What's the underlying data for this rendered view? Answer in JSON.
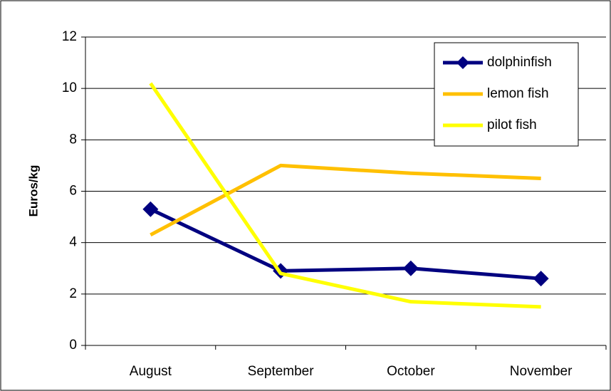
{
  "chart_data": {
    "type": "line",
    "y_label": "Euros/kg",
    "categories": [
      "August",
      "September",
      "October",
      "November"
    ],
    "series": [
      {
        "name": "dolphinfish",
        "color": "#000080",
        "marker": "diamond",
        "values": [
          5.3,
          2.9,
          3.0,
          2.6
        ]
      },
      {
        "name": "lemon fish",
        "color": "#ffc000",
        "values": [
          4.3,
          7.0,
          6.7,
          6.5
        ]
      },
      {
        "name": "pilot fish",
        "color": "#ffff00",
        "values": [
          10.2,
          2.8,
          1.7,
          1.5
        ]
      }
    ],
    "ylim": [
      0,
      12
    ],
    "yticks": [
      0,
      2,
      4,
      6,
      8,
      10,
      12
    ],
    "grid": true,
    "legend": "top-right"
  }
}
